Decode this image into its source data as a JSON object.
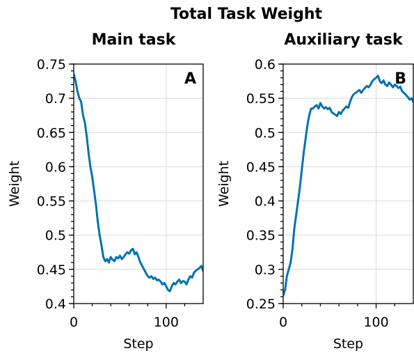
{
  "figure": {
    "title": "Total Task Weight"
  },
  "chart_data": [
    {
      "type": "line",
      "title": "Main task",
      "panel_label": "A",
      "xlabel": "Step",
      "ylabel": "Weight",
      "xlim": [
        0,
        140
      ],
      "ylim": [
        0.4,
        0.75
      ],
      "xticks": [
        0,
        100
      ],
      "xtick_labels": [
        "0",
        "100"
      ],
      "yticks": [
        0.4,
        0.45,
        0.5,
        0.55,
        0.6,
        0.65,
        0.7,
        0.75
      ],
      "ytick_labels": [
        "0.4",
        "0.45",
        "0.5",
        "0.55",
        "0.6",
        "0.65",
        "0.7",
        "0.75"
      ],
      "grid": true,
      "series": [
        {
          "color": "#0072b2",
          "x": [
            0,
            2,
            4,
            6,
            8,
            10,
            12,
            14,
            16,
            18,
            20,
            22,
            24,
            26,
            28,
            30,
            32,
            34,
            36,
            38,
            40,
            42,
            44,
            46,
            48,
            50,
            52,
            54,
            56,
            58,
            60,
            62,
            64,
            66,
            68,
            70,
            72,
            74,
            76,
            78,
            80,
            82,
            84,
            86,
            88,
            90,
            92,
            94,
            96,
            98,
            100,
            102,
            104,
            106,
            108,
            110,
            112,
            114,
            116,
            118,
            120,
            122,
            124,
            126,
            128,
            130,
            132,
            134,
            136,
            138,
            140
          ],
          "y": [
            0.735,
            0.725,
            0.71,
            0.7,
            0.695,
            0.675,
            0.665,
            0.645,
            0.62,
            0.6,
            0.585,
            0.565,
            0.545,
            0.52,
            0.5,
            0.485,
            0.468,
            0.462,
            0.465,
            0.46,
            0.468,
            0.464,
            0.462,
            0.468,
            0.466,
            0.47,
            0.465,
            0.468,
            0.472,
            0.475,
            0.473,
            0.478,
            0.48,
            0.472,
            0.475,
            0.468,
            0.46,
            0.455,
            0.45,
            0.445,
            0.44,
            0.438,
            0.44,
            0.436,
            0.438,
            0.434,
            0.435,
            0.432,
            0.428,
            0.43,
            0.425,
            0.42,
            0.418,
            0.425,
            0.43,
            0.428,
            0.432,
            0.435,
            0.43,
            0.433,
            0.432,
            0.428,
            0.435,
            0.44,
            0.438,
            0.445,
            0.448,
            0.45,
            0.452,
            0.455,
            0.448
          ]
        }
      ]
    },
    {
      "type": "line",
      "title": "Auxiliary task",
      "panel_label": "B",
      "xlabel": "Step",
      "ylabel": "Weight",
      "xlim": [
        0,
        140
      ],
      "ylim": [
        0.25,
        0.6
      ],
      "xticks": [
        0,
        100
      ],
      "xtick_labels": [
        "0",
        "100"
      ],
      "yticks": [
        0.25,
        0.3,
        0.35,
        0.4,
        0.45,
        0.5,
        0.55,
        0.6
      ],
      "ytick_labels": [
        "0.25",
        "0.3",
        "0.35",
        "0.4",
        "0.45",
        "0.5",
        "0.55",
        "0.6"
      ],
      "grid": true,
      "series": [
        {
          "color": "#0072b2",
          "x": [
            0,
            2,
            4,
            6,
            8,
            10,
            12,
            14,
            16,
            18,
            20,
            22,
            24,
            26,
            28,
            30,
            32,
            34,
            36,
            38,
            40,
            42,
            44,
            46,
            48,
            50,
            52,
            54,
            56,
            58,
            60,
            62,
            64,
            66,
            68,
            70,
            72,
            74,
            76,
            78,
            80,
            82,
            84,
            86,
            88,
            90,
            92,
            94,
            96,
            98,
            100,
            102,
            104,
            106,
            108,
            110,
            112,
            114,
            116,
            118,
            120,
            122,
            124,
            126,
            128,
            130,
            132,
            134,
            136,
            138,
            140
          ],
          "y": [
            0.262,
            0.27,
            0.29,
            0.3,
            0.31,
            0.33,
            0.36,
            0.38,
            0.4,
            0.42,
            0.445,
            0.47,
            0.49,
            0.51,
            0.525,
            0.535,
            0.535,
            0.538,
            0.54,
            0.535,
            0.543,
            0.538,
            0.535,
            0.537,
            0.534,
            0.536,
            0.53,
            0.528,
            0.526,
            0.524,
            0.53,
            0.527,
            0.532,
            0.535,
            0.538,
            0.536,
            0.545,
            0.552,
            0.556,
            0.558,
            0.56,
            0.562,
            0.558,
            0.562,
            0.565,
            0.568,
            0.566,
            0.57,
            0.575,
            0.578,
            0.58,
            0.583,
            0.575,
            0.572,
            0.576,
            0.57,
            0.568,
            0.573,
            0.57,
            0.566,
            0.57,
            0.568,
            0.565,
            0.567,
            0.56,
            0.558,
            0.555,
            0.552,
            0.548,
            0.55,
            0.545
          ]
        }
      ]
    }
  ]
}
